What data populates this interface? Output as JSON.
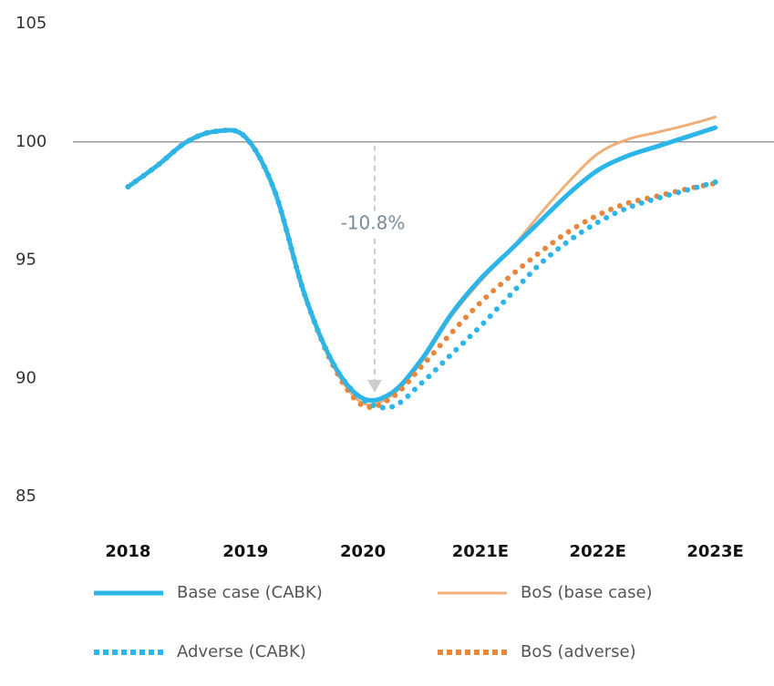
{
  "chart_data": {
    "type": "line",
    "x": [
      2018,
      2018.25,
      2018.5,
      2018.75,
      2019,
      2019.25,
      2019.5,
      2019.75,
      2020,
      2020.25,
      2020.5,
      2020.75,
      2021,
      2021.25,
      2021.5,
      2021.75,
      2022,
      2022.25,
      2022.5,
      2022.75,
      2023
    ],
    "series": [
      {
        "name": "Base case (CABK)",
        "color": "#2bb5e8",
        "style": "solid",
        "values": [
          98.1,
          99.0,
          100.0,
          100.45,
          100.2,
          97.9,
          93.6,
          90.6,
          89.15,
          89.4,
          90.8,
          92.7,
          94.2,
          95.4,
          96.6,
          97.8,
          98.8,
          99.4,
          99.8,
          100.2,
          100.6
        ]
      },
      {
        "name": "BoS (base case)",
        "color": "#f0ae78",
        "style": "thin",
        "values": [
          98.1,
          99.0,
          100.0,
          100.45,
          100.2,
          97.9,
          93.6,
          90.5,
          88.95,
          89.3,
          90.7,
          92.6,
          94.1,
          95.4,
          96.9,
          98.3,
          99.5,
          100.1,
          100.4,
          100.7,
          101.05
        ]
      },
      {
        "name": "Adverse (CABK)",
        "color": "#2bb5e8",
        "style": "dotted",
        "values": [
          98.1,
          99.0,
          100.0,
          100.45,
          100.2,
          97.9,
          93.6,
          90.6,
          89.1,
          88.8,
          89.8,
          91.0,
          92.2,
          93.5,
          94.8,
          95.8,
          96.6,
          97.2,
          97.6,
          97.95,
          98.3
        ]
      },
      {
        "name": "BoS (adverse)",
        "color": "#e8873c",
        "style": "dotted",
        "values": [
          98.1,
          99.0,
          100.0,
          100.45,
          100.2,
          97.9,
          93.6,
          90.5,
          88.85,
          89.2,
          90.5,
          91.9,
          93.2,
          94.3,
          95.3,
          96.2,
          96.9,
          97.4,
          97.7,
          98.0,
          98.25
        ]
      }
    ],
    "xlim": [
      2017.5,
      2023.5
    ],
    "xticks": [
      2018,
      2019,
      2020,
      {
        "value": 2021,
        "label": "2021E"
      },
      {
        "value": 2022,
        "label": "2022E"
      },
      {
        "value": 2023,
        "label": "2023E"
      }
    ],
    "ylim": [
      85,
      105
    ],
    "yticks": [
      85,
      90,
      95,
      100,
      105
    ],
    "reference_line": 100,
    "annotation": {
      "text": "-10.8%",
      "x": 2020.1
    }
  }
}
